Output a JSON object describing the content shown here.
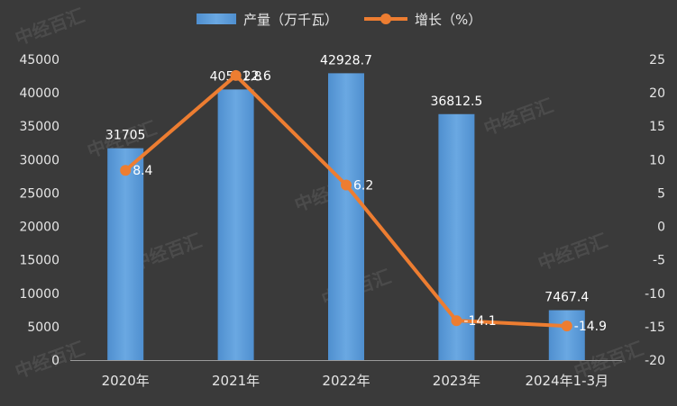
{
  "chart_data": {
    "type": "bar",
    "categories": [
      "2020年",
      "2021年",
      "2022年",
      "2023年",
      "2024年1-3月"
    ],
    "series": [
      {
        "name": "产量（万千瓦）",
        "kind": "bar",
        "axis": "left",
        "values": [
          31705,
          40501.8,
          42928.7,
          36812.5,
          7467.4
        ],
        "labels": [
          "31705",
          "40501.8",
          "42928.7",
          "36812.5",
          "7467.4"
        ]
      },
      {
        "name": "增长（%）",
        "kind": "line",
        "axis": "right",
        "values": [
          8.4,
          22.6,
          6.2,
          -14.1,
          -14.9
        ],
        "labels": [
          "8.4",
          "22.6",
          "6.2",
          "-14.1",
          "-14.9"
        ]
      }
    ],
    "y_left": {
      "min": 0,
      "max": 45000,
      "ticks": [
        "0",
        "5000",
        "10000",
        "15000",
        "20000",
        "25000",
        "30000",
        "35000",
        "40000",
        "45000"
      ]
    },
    "y_right": {
      "min": -20,
      "max": 25,
      "ticks": [
        "-20",
        "-15",
        "-10",
        "-5",
        "0",
        "5",
        "10",
        "15",
        "20",
        "25"
      ]
    },
    "legend_position": "top",
    "grid": false,
    "colors": {
      "bar": "#5b9bd5",
      "line": "#ed7d31",
      "background": "#3a3a3a"
    }
  },
  "watermark": "中经百汇"
}
